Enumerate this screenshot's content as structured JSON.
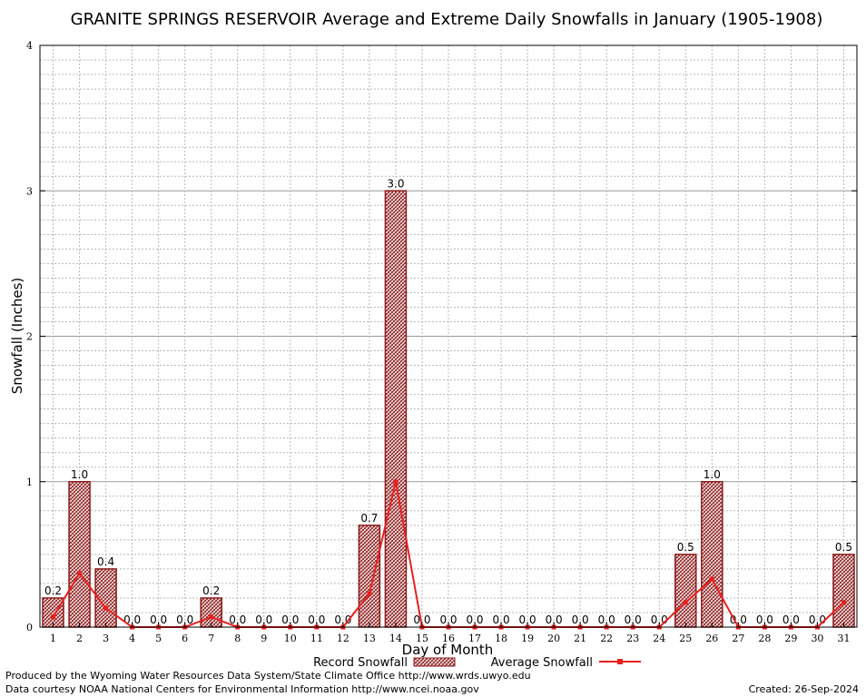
{
  "chart_data": {
    "type": "bar",
    "title": "GRANITE SPRINGS RESERVOIR Average and Extreme Daily Snowfalls in January (1905-1908)",
    "xlabel": "Day of Month",
    "ylabel": "Snowfall (Inches)",
    "ylim": [
      0,
      4
    ],
    "yticks": [
      "0",
      "1",
      "2",
      "3",
      "4"
    ],
    "grid": true,
    "legend_position": "bottom-center",
    "categories": [
      "1",
      "2",
      "3",
      "4",
      "5",
      "6",
      "7",
      "8",
      "9",
      "10",
      "11",
      "12",
      "13",
      "14",
      "15",
      "16",
      "17",
      "18",
      "19",
      "20",
      "21",
      "22",
      "23",
      "24",
      "25",
      "26",
      "27",
      "28",
      "29",
      "30",
      "31"
    ],
    "series": [
      {
        "name": "Record Snowfall",
        "kind": "bar",
        "color": "#8b1a1a",
        "values": [
          0.2,
          1.0,
          0.4,
          0.0,
          0.0,
          0.0,
          0.2,
          0.0,
          0.0,
          0.0,
          0.0,
          0.0,
          0.7,
          3.0,
          0.0,
          0.0,
          0.0,
          0.0,
          0.0,
          0.0,
          0.0,
          0.0,
          0.0,
          0.0,
          0.5,
          1.0,
          0.0,
          0.0,
          0.0,
          0.0,
          0.5
        ],
        "labels": [
          "0.2",
          "1.0",
          "0.4",
          "0.0",
          "0.0",
          "0.0",
          "0.2",
          "0.0",
          "0.0",
          "0.0",
          "0.0",
          "0.0",
          "0.7",
          "3.0",
          "0.0",
          "0.0",
          "0.0",
          "0.0",
          "0.0",
          "0.0",
          "0.0",
          "0.0",
          "0.0",
          "0.0",
          "0.5",
          "1.0",
          "0.0",
          "0.0",
          "0.0",
          "0.0",
          "0.5"
        ]
      },
      {
        "name": "Average Snowfall",
        "kind": "line",
        "color": "#e8201f",
        "values": [
          0.07,
          0.37,
          0.13,
          0.0,
          0.0,
          0.0,
          0.07,
          0.0,
          0.0,
          0.0,
          0.0,
          0.0,
          0.23,
          1.0,
          0.0,
          0.0,
          0.0,
          0.0,
          0.0,
          0.0,
          0.0,
          0.0,
          0.0,
          0.0,
          0.17,
          0.33,
          0.0,
          0.0,
          0.0,
          0.0,
          0.17
        ]
      }
    ]
  },
  "footer": {
    "produced_by": "Produced by the Wyoming Water Resources Data System/State Climate Office http://www.wrds.uwyo.edu",
    "data_courtesy": "Data courtesy NOAA National Centers for Environmental Information http://www.ncei.noaa.gov",
    "created": "Created: 26-Sep-2024"
  }
}
